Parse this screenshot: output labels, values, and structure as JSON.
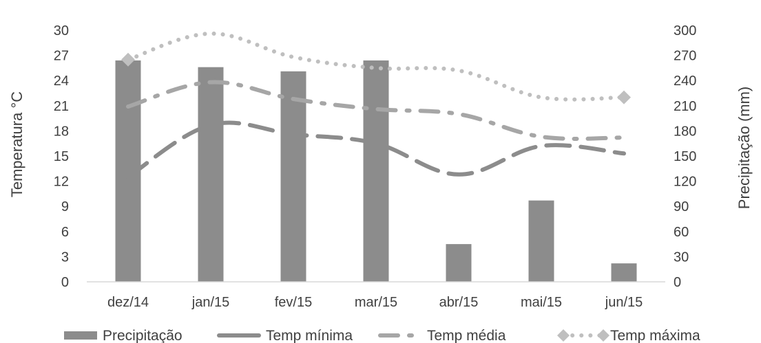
{
  "chart_data": {
    "type": "bar+line",
    "categories": [
      "dez/14",
      "jan/15",
      "fev/15",
      "mar/15",
      "abr/15",
      "mai/15",
      "jun/15"
    ],
    "left_axis": {
      "title": "Temperatura °C",
      "range": [
        0,
        30
      ],
      "ticks": [
        0,
        3,
        6,
        9,
        12,
        15,
        18,
        21,
        24,
        27,
        30
      ]
    },
    "right_axis": {
      "title": "Precipitação (mm)",
      "range": [
        0,
        300
      ],
      "ticks": [
        0,
        30,
        60,
        90,
        120,
        150,
        180,
        210,
        240,
        270,
        300
      ]
    },
    "series": [
      {
        "name": "Precipitação",
        "kind": "bar",
        "axis": "right",
        "color": "#8c8c8c",
        "values": [
          264,
          256,
          251,
          264,
          45,
          97,
          22
        ]
      },
      {
        "name": "Temp mínima",
        "kind": "line",
        "style": "long-dash",
        "axis": "left",
        "color": "#8c8c8c",
        "values": [
          12.5,
          18.7,
          17.6,
          16.5,
          12.8,
          16.2,
          15.3
        ]
      },
      {
        "name": "Temp média",
        "kind": "line",
        "style": "dash-dot",
        "axis": "left",
        "color": "#a6a6a6",
        "values": [
          20.9,
          23.8,
          21.8,
          20.6,
          20.0,
          17.3,
          17.2
        ]
      },
      {
        "name": "Temp máxima",
        "kind": "line",
        "style": "dotted",
        "axis": "left",
        "color": "#bfbfbf",
        "marker": "diamond-endpoints",
        "values": [
          26.5,
          29.6,
          26.8,
          25.5,
          25.2,
          22.0,
          22.0
        ]
      }
    ],
    "legend_position": "bottom",
    "grid": false
  }
}
